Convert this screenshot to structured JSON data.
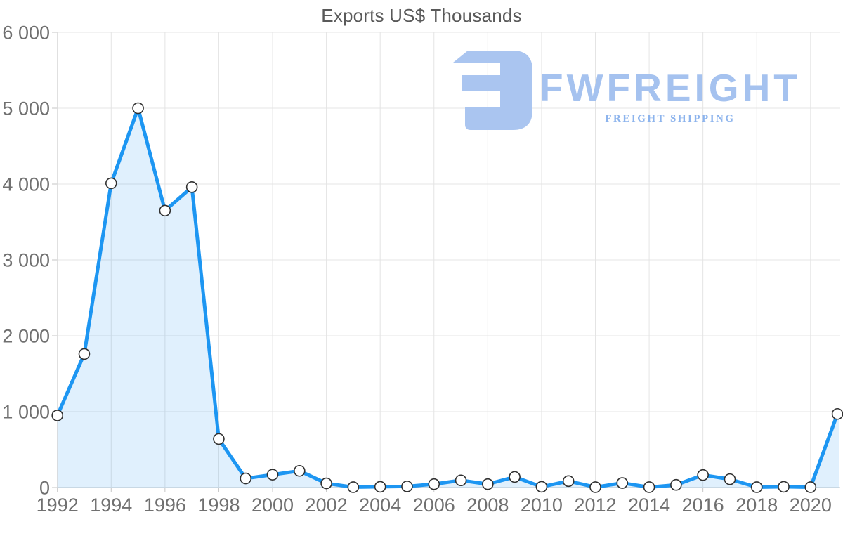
{
  "chart": {
    "title": "Exports US$ Thousands"
  },
  "logo": {
    "brand": "FWFREIGHT",
    "tagline": "FREIGHT SHIPPING",
    "icon_color": "#aac5f0",
    "brand_color": "#a5c2ef",
    "tagline_color": "#8db4ed"
  },
  "chart_data": {
    "type": "area",
    "title": "Exports US$ Thousands",
    "xlabel": "",
    "ylabel": "",
    "x": [
      1992,
      1993,
      1994,
      1995,
      1996,
      1997,
      1998,
      1999,
      2000,
      2001,
      2002,
      2003,
      2004,
      2005,
      2006,
      2007,
      2008,
      2009,
      2010,
      2011,
      2012,
      2013,
      2014,
      2015,
      2016,
      2017,
      2018,
      2019,
      2020,
      2021
    ],
    "values": [
      950,
      1760,
      4010,
      5000,
      3650,
      3960,
      640,
      120,
      170,
      220,
      55,
      5,
      10,
      15,
      45,
      95,
      45,
      140,
      10,
      85,
      5,
      60,
      5,
      35,
      165,
      110,
      5,
      10,
      5,
      970
    ],
    "xlim": [
      1992,
      2021.1
    ],
    "ylim": [
      0,
      6000
    ],
    "y_ticks": [
      0,
      1000,
      2000,
      3000,
      4000,
      5000,
      6000
    ],
    "y_tick_labels": [
      "0",
      "1 000",
      "2 000",
      "3 000",
      "4 000",
      "5 000",
      "6 000"
    ],
    "x_ticks": [
      1992,
      1994,
      1996,
      1998,
      2000,
      2002,
      2004,
      2006,
      2008,
      2010,
      2012,
      2014,
      2016,
      2018,
      2020
    ],
    "x_tick_labels": [
      "1992",
      "1994",
      "1996",
      "1998",
      "2000",
      "2002",
      "2004",
      "2006",
      "2008",
      "2010",
      "2012",
      "2014",
      "2016",
      "2018",
      "2020"
    ],
    "grid": true,
    "legend": "none",
    "markers": "circle",
    "colors": {
      "line": "#1d96f2",
      "area_fill": "rgba(33,150,243,0.14)",
      "marker_fill": "#ffffff",
      "marker_stroke": "#303030",
      "gridline": "#e4e4e4",
      "axis": "#c6c6c6",
      "tick_label": "#707070",
      "title": "#595959"
    }
  }
}
